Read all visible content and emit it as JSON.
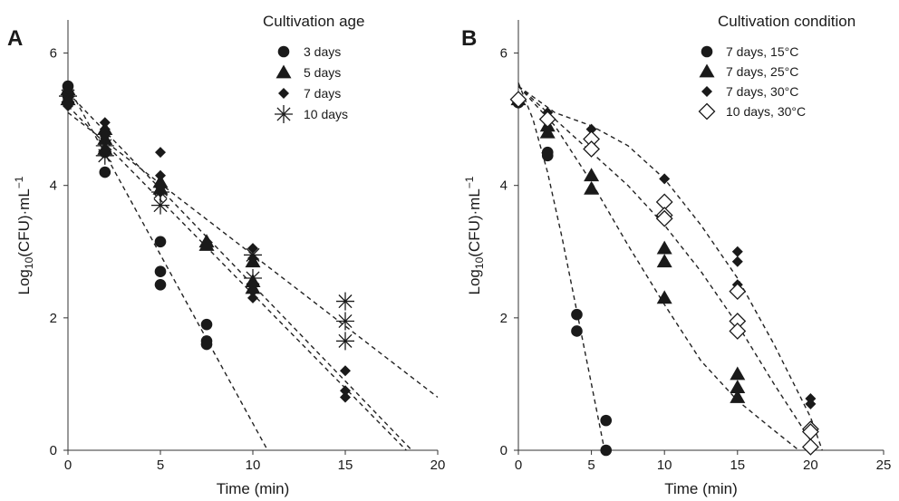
{
  "chart_data": [
    {
      "type": "scatter",
      "panel_label": "A",
      "xlabel": "Time (min)",
      "ylabel": {
        "prefix": "Log",
        "sub": "10",
        "mid": "(CFU)·mL",
        "sup": "−1"
      },
      "xlim": [
        0,
        20
      ],
      "ylim": [
        0,
        6.5
      ],
      "xticks": [
        "0",
        "5",
        "10",
        "15",
        "20"
      ],
      "yticks": [
        "0",
        "2",
        "4",
        "6"
      ],
      "legend_title": "Cultivation age",
      "legend_position": "top-right",
      "series": [
        {
          "name": "3 days",
          "marker": "circle",
          "points": [
            [
              0,
              5.5
            ],
            [
              0,
              5.35
            ],
            [
              0,
              5.25
            ],
            [
              2,
              4.5
            ],
            [
              2,
              4.2
            ],
            [
              5,
              3.15
            ],
            [
              5,
              2.7
            ],
            [
              5,
              2.5
            ],
            [
              7.5,
              1.9
            ],
            [
              7.5,
              1.65
            ],
            [
              7.5,
              1.6
            ]
          ],
          "fit": [
            [
              0,
              5.5
            ],
            [
              10.8,
              0
            ]
          ]
        },
        {
          "name": "5 days",
          "marker": "triangle",
          "points": [
            [
              0,
              5.45
            ],
            [
              0,
              5.3
            ],
            [
              2,
              4.85
            ],
            [
              2,
              4.7
            ],
            [
              2,
              4.55
            ],
            [
              5,
              4.05
            ],
            [
              5,
              3.95
            ],
            [
              7.5,
              3.15
            ],
            [
              7.5,
              3.1
            ],
            [
              10,
              2.85
            ],
            [
              10,
              2.55
            ],
            [
              10,
              2.45
            ]
          ],
          "fit": [
            [
              0,
              5.4
            ],
            [
              18.6,
              0
            ]
          ]
        },
        {
          "name": "7 days",
          "marker": "diamond",
          "points": [
            [
              0,
              5.45
            ],
            [
              0,
              5.3
            ],
            [
              0,
              5.2
            ],
            [
              2,
              4.95
            ],
            [
              2,
              4.85
            ],
            [
              2,
              4.75
            ],
            [
              5,
              4.5
            ],
            [
              5,
              4.15
            ],
            [
              5,
              4.0
            ],
            [
              5,
              3.9
            ],
            [
              10,
              3.05
            ],
            [
              10,
              2.9
            ],
            [
              10,
              2.4
            ],
            [
              10,
              2.3
            ],
            [
              15,
              1.2
            ],
            [
              15,
              0.9
            ],
            [
              15,
              0.8
            ]
          ],
          "fit": [
            [
              0,
              5.2
            ],
            [
              18.3,
              0
            ]
          ]
        },
        {
          "name": "10 days",
          "marker": "asterisk",
          "points": [
            [
              0,
              5.35
            ],
            [
              2,
              4.6
            ],
            [
              2,
              4.45
            ],
            [
              5,
              3.9
            ],
            [
              5,
              3.7
            ],
            [
              10,
              2.95
            ],
            [
              10,
              2.6
            ],
            [
              15,
              2.25
            ],
            [
              15,
              1.95
            ],
            [
              15,
              1.65
            ]
          ],
          "fit": [
            [
              0,
              5.1
            ],
            [
              20,
              0.8
            ]
          ]
        }
      ]
    },
    {
      "type": "scatter",
      "panel_label": "B",
      "xlabel": "Time (min)",
      "ylabel": {
        "prefix": "Log",
        "sub": "10",
        "mid": "(CFU)·mL",
        "sup": "−1"
      },
      "xlim": [
        0,
        25
      ],
      "ylim": [
        0,
        6.5
      ],
      "xticks": [
        "0",
        "5",
        "10",
        "15",
        "20",
        "25"
      ],
      "yticks": [
        "0",
        "2",
        "4",
        "6"
      ],
      "legend_title": "Cultivation condition",
      "legend_position": "top-right",
      "series": [
        {
          "name": "7 days, 15°C",
          "marker": "circle",
          "points": [
            [
              0,
              5.25
            ],
            [
              2,
              4.5
            ],
            [
              2,
              4.45
            ],
            [
              4,
              2.05
            ],
            [
              4,
              1.8
            ],
            [
              6,
              0.45
            ],
            [
              6,
              0.0
            ]
          ],
          "fit": [
            [
              0,
              5.55
            ],
            [
              1,
              5.0
            ],
            [
              2,
              4.2
            ],
            [
              3,
              3.2
            ],
            [
              4,
              2.1
            ],
            [
              5,
              1.0
            ],
            [
              5.9,
              0
            ]
          ]
        },
        {
          "name": "7 days, 25°C",
          "marker": "triangle",
          "points": [
            [
              0,
              5.3
            ],
            [
              2,
              4.9
            ],
            [
              2,
              4.8
            ],
            [
              5,
              4.15
            ],
            [
              5,
              3.95
            ],
            [
              10,
              3.05
            ],
            [
              10,
              2.85
            ],
            [
              10,
              2.3
            ],
            [
              15,
              1.15
            ],
            [
              15,
              0.95
            ],
            [
              15,
              0.8
            ]
          ],
          "fit": [
            [
              0,
              5.5
            ],
            [
              2.5,
              4.9
            ],
            [
              5,
              4.05
            ],
            [
              7.5,
              3.1
            ],
            [
              10,
              2.2
            ],
            [
              12.5,
              1.35
            ],
            [
              15,
              0.75
            ],
            [
              17.5,
              0.3
            ],
            [
              19.2,
              0
            ]
          ]
        },
        {
          "name": "7 days, 30°C",
          "marker": "diamond",
          "points": [
            [
              0,
              5.25
            ],
            [
              2,
              5.1
            ],
            [
              2,
              5.0
            ],
            [
              5,
              4.85
            ],
            [
              5,
              4.55
            ],
            [
              10,
              4.1
            ],
            [
              15,
              3.0
            ],
            [
              15,
              2.85
            ],
            [
              15,
              2.5
            ],
            [
              20,
              0.78
            ],
            [
              20,
              0.7
            ]
          ],
          "fit": [
            [
              0,
              5.5
            ],
            [
              2.5,
              5.1
            ],
            [
              5,
              4.9
            ],
            [
              7.5,
              4.6
            ],
            [
              10,
              4.1
            ],
            [
              12.5,
              3.4
            ],
            [
              15,
              2.6
            ],
            [
              17.5,
              1.6
            ],
            [
              20,
              0.5
            ],
            [
              20.8,
              0
            ]
          ]
        },
        {
          "name": "10 days, 30°C",
          "marker": "open-diamond",
          "points": [
            [
              0,
              5.3
            ],
            [
              2,
              5.0
            ],
            [
              5,
              4.7
            ],
            [
              5,
              4.55
            ],
            [
              10,
              3.75
            ],
            [
              10,
              3.55
            ],
            [
              10,
              3.5
            ],
            [
              15,
              2.4
            ],
            [
              15,
              1.95
            ],
            [
              15,
              1.8
            ],
            [
              20,
              0.32
            ],
            [
              20,
              0.28
            ],
            [
              20,
              0.05
            ]
          ],
          "fit": [
            [
              0,
              5.5
            ],
            [
              2.5,
              5.0
            ],
            [
              5,
              4.5
            ],
            [
              7.5,
              4.0
            ],
            [
              10,
              3.4
            ],
            [
              12.5,
              2.7
            ],
            [
              15,
              1.9
            ],
            [
              17.5,
              1.0
            ],
            [
              20,
              0.15
            ],
            [
              20.3,
              0
            ]
          ]
        }
      ]
    }
  ]
}
